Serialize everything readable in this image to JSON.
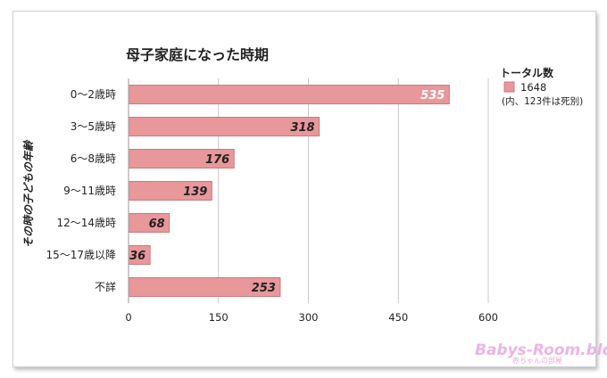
{
  "chart_data": {
    "type": "bar",
    "orientation": "horizontal",
    "title": "母子家庭になった時期",
    "ylabel": "その時の子どもの年齢",
    "xlabel": "",
    "categories": [
      "0～2歳時",
      "3～5歳時",
      "6～8歳時",
      "9～11歳時",
      "12～14歳時",
      "15～17歳以降",
      "不詳"
    ],
    "series": [
      {
        "name": "1648",
        "values": [
          535,
          318,
          176,
          139,
          68,
          36,
          253
        ]
      }
    ],
    "xlim": [
      0,
      600
    ],
    "xticks": [
      "0",
      "150",
      "300",
      "450",
      "600"
    ],
    "grid": true,
    "legend": {
      "title": "トータル数",
      "entry": "1648",
      "note": "(内、123件は死別)",
      "position": "right"
    },
    "colors": {
      "bar": "#e8979a",
      "bar_border": "#c97a7e",
      "grid": "#c8c8c8"
    }
  },
  "watermark": {
    "logo": "Babys-Room.blog",
    "sub": "赤ちゃんの部屋"
  }
}
